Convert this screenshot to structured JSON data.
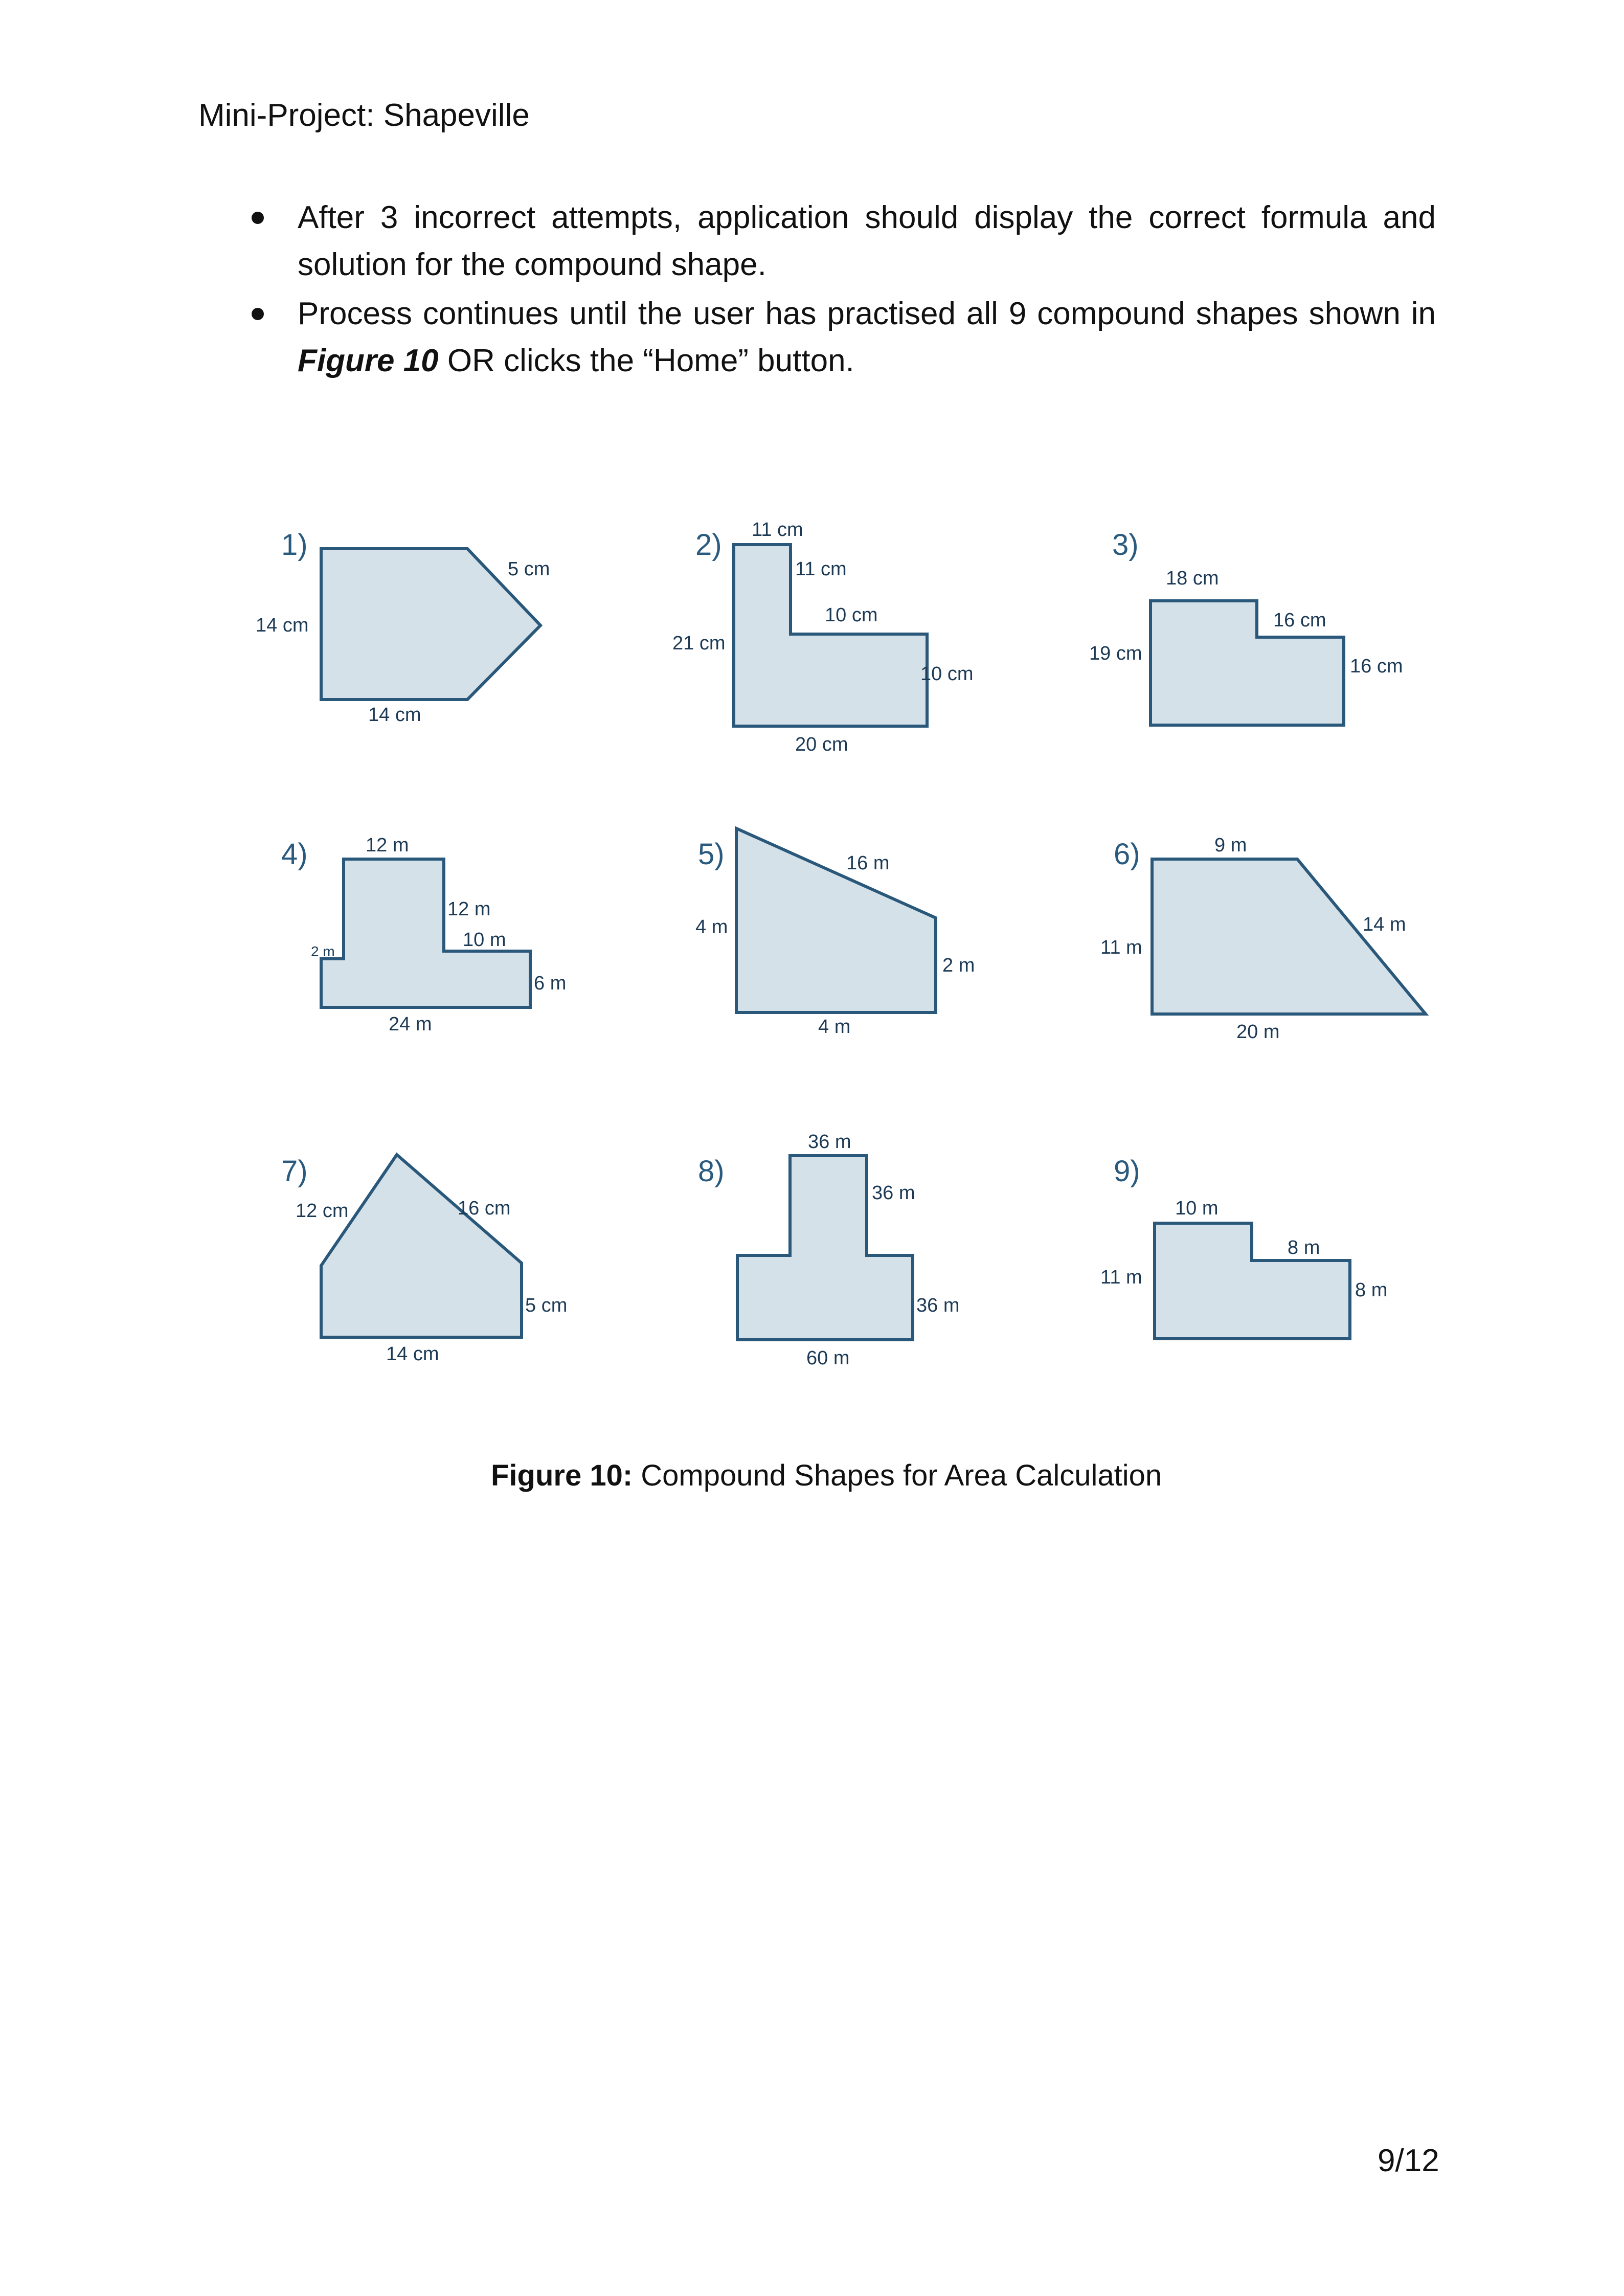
{
  "header": {
    "title": "Mini-Project: Shapeville"
  },
  "bullets": [
    {
      "text": "After 3 incorrect attempts, application should display the correct formula and solution for the compound shape."
    },
    {
      "text_before": "Process continues until the user has practised all 9 compound shapes shown in ",
      "emphasis": "Figure 10",
      "text_after": " OR clicks  the “Home” button."
    }
  ],
  "figure": {
    "shapes": [
      {
        "number": "1)",
        "labels": [
          "5 cm",
          "14 cm",
          "14 cm"
        ]
      },
      {
        "number": "2)",
        "labels": [
          "11 cm",
          "11 cm",
          "10 cm",
          "21 cm",
          "10 cm",
          "20 cm"
        ]
      },
      {
        "number": "3)",
        "labels": [
          "18 cm",
          "16 cm",
          "19 cm",
          "16 cm"
        ]
      },
      {
        "number": "4)",
        "labels": [
          "12 m",
          "12 m",
          "2 m",
          "10 m",
          "6 m",
          "24 m"
        ]
      },
      {
        "number": "5)",
        "labels": [
          "16 m",
          "4 m",
          "2 m",
          "4 m"
        ]
      },
      {
        "number": "6)",
        "labels": [
          "9 m",
          "14 m",
          "11 m",
          "20 m"
        ]
      },
      {
        "number": "7)",
        "labels": [
          "12 cm",
          "16 cm",
          "5 cm",
          "14 cm"
        ]
      },
      {
        "number": "8)",
        "labels": [
          "36 m",
          "36 m",
          "36 m",
          "60 m"
        ]
      },
      {
        "number": "9)",
        "labels": [
          "10 m",
          "8 m",
          "11 m",
          "8 m"
        ]
      }
    ],
    "colors": {
      "fill": "#d5e1e9",
      "stroke": "#29587a",
      "number": "#2a5a7e"
    }
  },
  "caption": {
    "label": "Figure 10:",
    "text": " Compound Shapes for Area Calculation"
  },
  "page_number": "9/12"
}
